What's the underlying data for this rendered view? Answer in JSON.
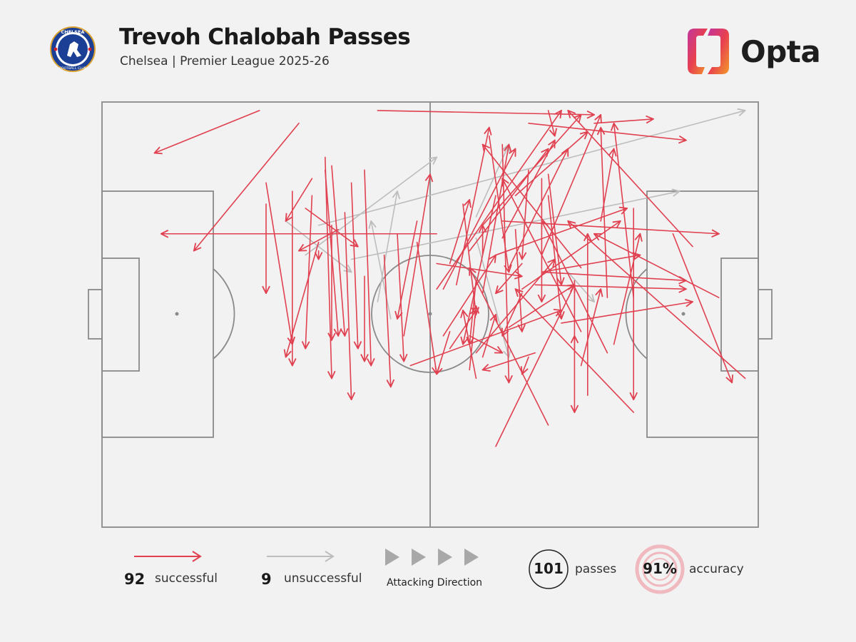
{
  "header": {
    "title": "Trevoh Chalobah Passes",
    "subtitle": "Chelsea | Premier League 2025-26",
    "club_crest": {
      "icon": "chelsea-crest-icon",
      "text_top": "CHELSEA",
      "text_bottom": "FOOTBALL CLUB"
    },
    "brand": {
      "name": "Opta",
      "icon": "opta-logo-icon"
    }
  },
  "colors": {
    "background": "#f2f2f2",
    "successful": "#e0404f",
    "unsuccessful": "#bdbdbd",
    "pitch_lines": "#8a8a8a",
    "accuracy_ring": "#f0b9bf"
  },
  "legend": {
    "successful_count": "92",
    "successful_label": "successful",
    "unsuccessful_count": "9",
    "unsuccessful_label": "unsuccessful",
    "direction_label": "Attacking Direction",
    "passes_count": "101",
    "passes_label": "passes",
    "accuracy_value": "91%",
    "accuracy_label": "accuracy"
  },
  "chart_data": {
    "type": "pass-map",
    "pitch": {
      "length": 100,
      "width": 100,
      "attacking_direction": "left-to-right"
    },
    "successful": [
      [
        30,
        5,
        14,
        35
      ],
      [
        24,
        2,
        8,
        12
      ],
      [
        51,
        38,
        64,
        41
      ],
      [
        51,
        31,
        9,
        31
      ],
      [
        56,
        35,
        68,
        11
      ],
      [
        62,
        39,
        71,
        11
      ],
      [
        62,
        53,
        72,
        43
      ],
      [
        81,
        46,
        78,
        5
      ],
      [
        68,
        2,
        69,
        8
      ],
      [
        75,
        5,
        84,
        4
      ],
      [
        65,
        5,
        89,
        9
      ],
      [
        73,
        39,
        58,
        10
      ],
      [
        64,
        38,
        60,
        45
      ],
      [
        90,
        34,
        71,
        2
      ],
      [
        67,
        40,
        89,
        42
      ],
      [
        56,
        63,
        57,
        48
      ],
      [
        52,
        55,
        60,
        36
      ],
      [
        73,
        62,
        76,
        44
      ],
      [
        64,
        44,
        79,
        28
      ],
      [
        60,
        36,
        80,
        25
      ],
      [
        63,
        22,
        74,
        7
      ],
      [
        58,
        29,
        73,
        3
      ],
      [
        94,
        46,
        75,
        31
      ],
      [
        51,
        44,
        70,
        2
      ],
      [
        42,
        2,
        75,
        3
      ],
      [
        70,
        52,
        90,
        47
      ],
      [
        61,
        28,
        94,
        31
      ],
      [
        67,
        36,
        76,
        3
      ],
      [
        74,
        69,
        74,
        31
      ],
      [
        87,
        31,
        96,
        66
      ],
      [
        78,
        57,
        82,
        31
      ],
      [
        60,
        81,
        72,
        43
      ],
      [
        77,
        46,
        76,
        6
      ],
      [
        61,
        32,
        69,
        9
      ],
      [
        77,
        59,
        67,
        28
      ],
      [
        53,
        38,
        56,
        23
      ],
      [
        52,
        44,
        63,
        11
      ],
      [
        66,
        43,
        89,
        44
      ],
      [
        58,
        45,
        62,
        10
      ],
      [
        54,
        43,
        59,
        6
      ],
      [
        59,
        8,
        62,
        40
      ],
      [
        68,
        76,
        56,
        39
      ],
      [
        76,
        28,
        78,
        11
      ],
      [
        73,
        54,
        61,
        18
      ],
      [
        58,
        36,
        58,
        29
      ],
      [
        81,
        73,
        63,
        44
      ],
      [
        98,
        65,
        71,
        28
      ],
      [
        53,
        58,
        57,
        49
      ],
      [
        66,
        59,
        58,
        63
      ],
      [
        81,
        25,
        81,
        70
      ],
      [
        68,
        22,
        70,
        51
      ],
      [
        57,
        59,
        69,
        37
      ],
      [
        61,
        10,
        62,
        66
      ],
      [
        72,
        42,
        72,
        73
      ],
      [
        60,
        22,
        55,
        57
      ],
      [
        63,
        30,
        64,
        54
      ],
      [
        67,
        18,
        67,
        47
      ],
      [
        68,
        17,
        70,
        43
      ],
      [
        58,
        60,
        60,
        50
      ],
      [
        56,
        55,
        61,
        59
      ],
      [
        57,
        65,
        55,
        49
      ],
      [
        65,
        16,
        64,
        37
      ],
      [
        55,
        24,
        57,
        50
      ],
      [
        46,
        55,
        50,
        17
      ],
      [
        48,
        28,
        45,
        51
      ],
      [
        48,
        33,
        51,
        64
      ],
      [
        45,
        31,
        46,
        61
      ],
      [
        43,
        36,
        44,
        67
      ],
      [
        40,
        16,
        41,
        62
      ],
      [
        38,
        19,
        39,
        58
      ],
      [
        35,
        29,
        35,
        56
      ],
      [
        34,
        16,
        36,
        55
      ],
      [
        35,
        15,
        37,
        55
      ],
      [
        32,
        22,
        31,
        58
      ],
      [
        34,
        13,
        35,
        65
      ],
      [
        37,
        26,
        38,
        70
      ],
      [
        29,
        21,
        29,
        62
      ],
      [
        36,
        30,
        30,
        35
      ],
      [
        33,
        35,
        33,
        37
      ],
      [
        33,
        33,
        28,
        60
      ],
      [
        25,
        19,
        29,
        57
      ],
      [
        32,
        18,
        28,
        28
      ],
      [
        25,
        24,
        25,
        45
      ],
      [
        57,
        42,
        56,
        57
      ],
      [
        65,
        60,
        64,
        64
      ],
      [
        67,
        40,
        82,
        36
      ],
      [
        72,
        58,
        72,
        55
      ],
      [
        64,
        45,
        61,
        55
      ],
      [
        47,
        62,
        70,
        49
      ],
      [
        53,
        54,
        51,
        64
      ],
      [
        40,
        41,
        40,
        61
      ],
      [
        31,
        25,
        39,
        34
      ]
    ],
    "unsuccessful": [
      [
        31,
        36,
        51,
        13
      ],
      [
        57,
        27,
        62,
        10
      ],
      [
        42,
        47,
        45,
        21
      ],
      [
        44,
        51,
        41,
        28
      ],
      [
        38,
        37,
        88,
        21
      ],
      [
        28,
        28,
        38,
        40
      ],
      [
        33,
        29,
        98,
        2
      ],
      [
        57,
        32,
        62,
        60
      ],
      [
        71,
        40,
        75,
        47
      ]
    ]
  }
}
